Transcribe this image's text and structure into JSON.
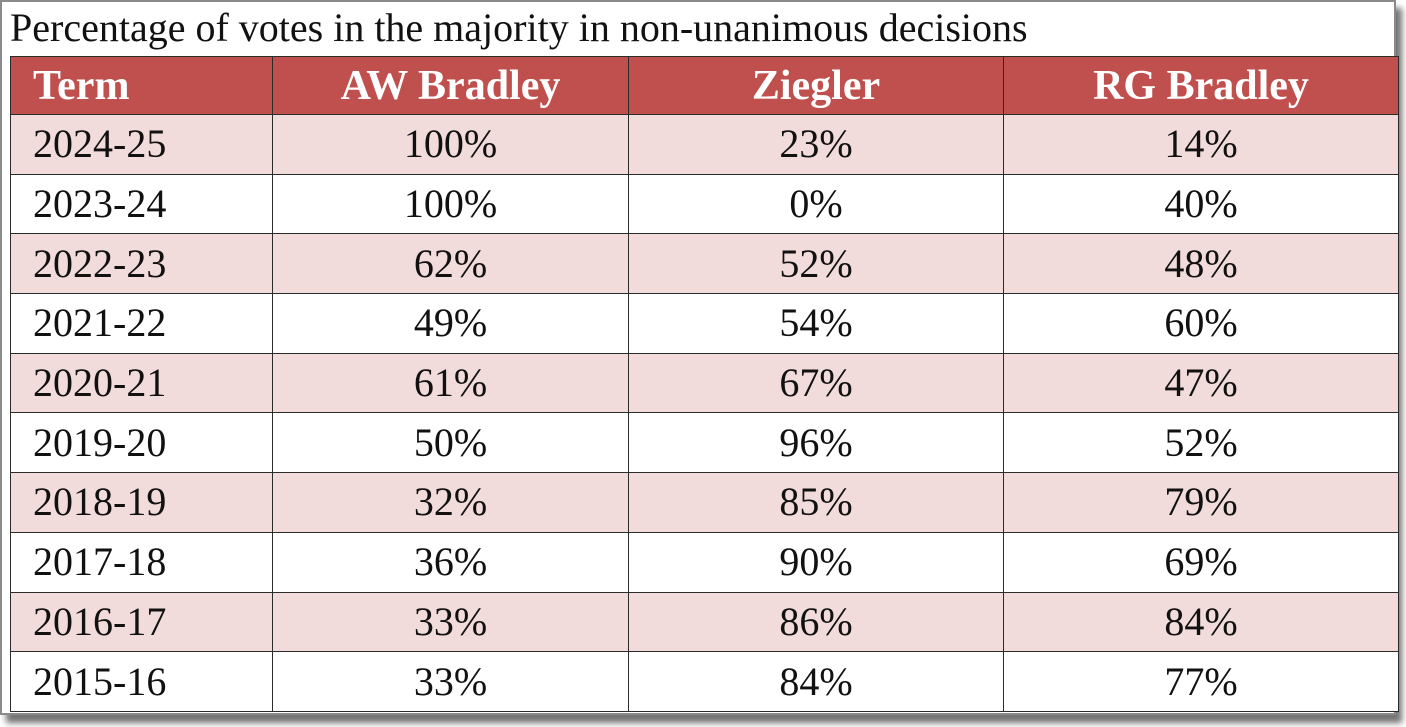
{
  "chart_data": {
    "type": "table",
    "title": "Percentage of votes in the majority in non-unanimous decisions",
    "header_color": "#c0504d",
    "band_color": "#f2dcdb",
    "columns": [
      "Term",
      "AW Bradley",
      "Ziegler",
      "RG Bradley"
    ],
    "rows": [
      {
        "term": "2024-25",
        "aw_bradley": "100%",
        "ziegler": "23%",
        "rg_bradley": "14%"
      },
      {
        "term": "2023-24",
        "aw_bradley": "100%",
        "ziegler": "0%",
        "rg_bradley": "40%"
      },
      {
        "term": "2022-23",
        "aw_bradley": "62%",
        "ziegler": "52%",
        "rg_bradley": "48%"
      },
      {
        "term": "2021-22",
        "aw_bradley": "49%",
        "ziegler": "54%",
        "rg_bradley": "60%"
      },
      {
        "term": "2020-21",
        "aw_bradley": "61%",
        "ziegler": "67%",
        "rg_bradley": "47%"
      },
      {
        "term": "2019-20",
        "aw_bradley": "50%",
        "ziegler": "96%",
        "rg_bradley": "52%"
      },
      {
        "term": "2018-19",
        "aw_bradley": "32%",
        "ziegler": "85%",
        "rg_bradley": "79%"
      },
      {
        "term": "2017-18",
        "aw_bradley": "36%",
        "ziegler": "90%",
        "rg_bradley": "69%"
      },
      {
        "term": "2016-17",
        "aw_bradley": "33%",
        "ziegler": "86%",
        "rg_bradley": "84%"
      },
      {
        "term": "2015-16",
        "aw_bradley": "33%",
        "ziegler": "84%",
        "rg_bradley": "77%"
      }
    ]
  }
}
